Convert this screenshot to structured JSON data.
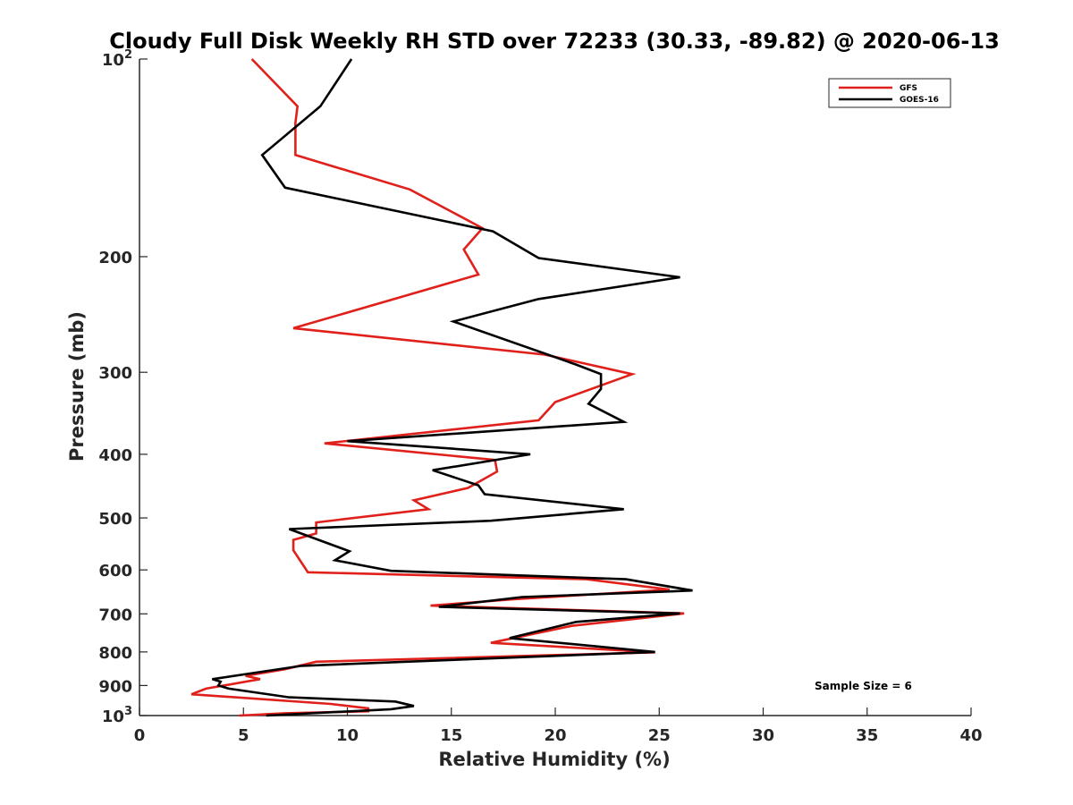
{
  "chart_data": {
    "type": "line",
    "title": "Cloudy Full Disk Weekly RH STD over 72233 (30.33, -89.82) @ 2020-06-13",
    "xlabel": "Relative Humidity (%)",
    "ylabel": "Pressure (mb)",
    "xlim": [
      0,
      40
    ],
    "ylim": [
      100,
      1000
    ],
    "yscale": "log",
    "y_reversed": true,
    "xticks": [
      0,
      5,
      10,
      15,
      20,
      25,
      30,
      35,
      40
    ],
    "xtick_labels": [
      "0",
      "5",
      "10",
      "15",
      "20",
      "25",
      "30",
      "35",
      "40"
    ],
    "yticks": [
      100,
      200,
      300,
      400,
      500,
      600,
      700,
      800,
      900,
      1000
    ],
    "ytick_labels": [
      {
        "base": "10",
        "exp": "2"
      },
      {
        "base": "200",
        "exp": ""
      },
      {
        "base": "300",
        "exp": ""
      },
      {
        "base": "400",
        "exp": ""
      },
      {
        "base": "500",
        "exp": ""
      },
      {
        "base": "600",
        "exp": ""
      },
      {
        "base": "700",
        "exp": ""
      },
      {
        "base": "800",
        "exp": ""
      },
      {
        "base": "900",
        "exp": ""
      },
      {
        "base": "10",
        "exp": "3"
      }
    ],
    "legend_position": "top-right",
    "annotation": "Sample Size = 6",
    "series": [
      {
        "name": "GFS",
        "color": "#e0201b",
        "points": [
          [
            5.4,
            100
          ],
          [
            7.6,
            118
          ],
          [
            7.5,
            125
          ],
          [
            7.5,
            140
          ],
          [
            13,
            158
          ],
          [
            16.5,
            181
          ],
          [
            15.6,
            195
          ],
          [
            16.3,
            213
          ],
          [
            7.4,
            257
          ],
          [
            19.5,
            282
          ],
          [
            23.7,
            302
          ],
          [
            20,
            333
          ],
          [
            19.2,
            355
          ],
          [
            8.9,
            385
          ],
          [
            17.1,
            408
          ],
          [
            17.2,
            425
          ],
          [
            15.8,
            450
          ],
          [
            13.2,
            470
          ],
          [
            13.9,
            485
          ],
          [
            8.5,
            508
          ],
          [
            8.5,
            528
          ],
          [
            7.4,
            540
          ],
          [
            7.4,
            560
          ],
          [
            8.1,
            605
          ],
          [
            21.5,
            620
          ],
          [
            25.5,
            643
          ],
          [
            18,
            665
          ],
          [
            14,
            680
          ],
          [
            26.2,
            699
          ],
          [
            20.8,
            730
          ],
          [
            16.9,
            775
          ],
          [
            24.8,
            801
          ],
          [
            8.5,
            828
          ],
          [
            7,
            850
          ],
          [
            5.1,
            870
          ],
          [
            5.8,
            880
          ],
          [
            3.2,
            910
          ],
          [
            2.5,
            928
          ],
          [
            9.2,
            960
          ],
          [
            11,
            975
          ],
          [
            11,
            985
          ],
          [
            7,
            992
          ],
          [
            4.8,
            1000
          ]
        ]
      },
      {
        "name": "GOES-16",
        "color": "#000000",
        "points": [
          [
            10.2,
            100
          ],
          [
            8.7,
            118
          ],
          [
            5.9,
            140
          ],
          [
            7,
            157
          ],
          [
            17,
            183
          ],
          [
            19.2,
            201
          ],
          [
            26,
            215
          ],
          [
            19.2,
            232
          ],
          [
            15.1,
            251
          ],
          [
            21,
            292
          ],
          [
            22.2,
            302
          ],
          [
            22.2,
            318
          ],
          [
            21.6,
            335
          ],
          [
            23.3,
            357
          ],
          [
            10,
            382
          ],
          [
            18.8,
            400
          ],
          [
            14.1,
            423
          ],
          [
            16.3,
            446
          ],
          [
            16.6,
            460
          ],
          [
            23.3,
            485
          ],
          [
            16.9,
            505
          ],
          [
            7.2,
            520
          ],
          [
            10.1,
            562
          ],
          [
            9.4,
            580
          ],
          [
            12.1,
            602
          ],
          [
            23.4,
            620
          ],
          [
            26.6,
            645
          ],
          [
            18.4,
            660
          ],
          [
            14.4,
            683
          ],
          [
            26,
            699
          ],
          [
            21,
            720
          ],
          [
            17.8,
            762
          ],
          [
            24.8,
            800
          ],
          [
            7.8,
            840
          ],
          [
            3.5,
            880
          ],
          [
            3.9,
            888
          ],
          [
            3.8,
            900
          ],
          [
            4.3,
            910
          ],
          [
            7.2,
            938
          ],
          [
            12.3,
            952
          ],
          [
            13.2,
            967
          ],
          [
            12.1,
            978
          ],
          [
            6.1,
            1000
          ]
        ]
      }
    ]
  }
}
